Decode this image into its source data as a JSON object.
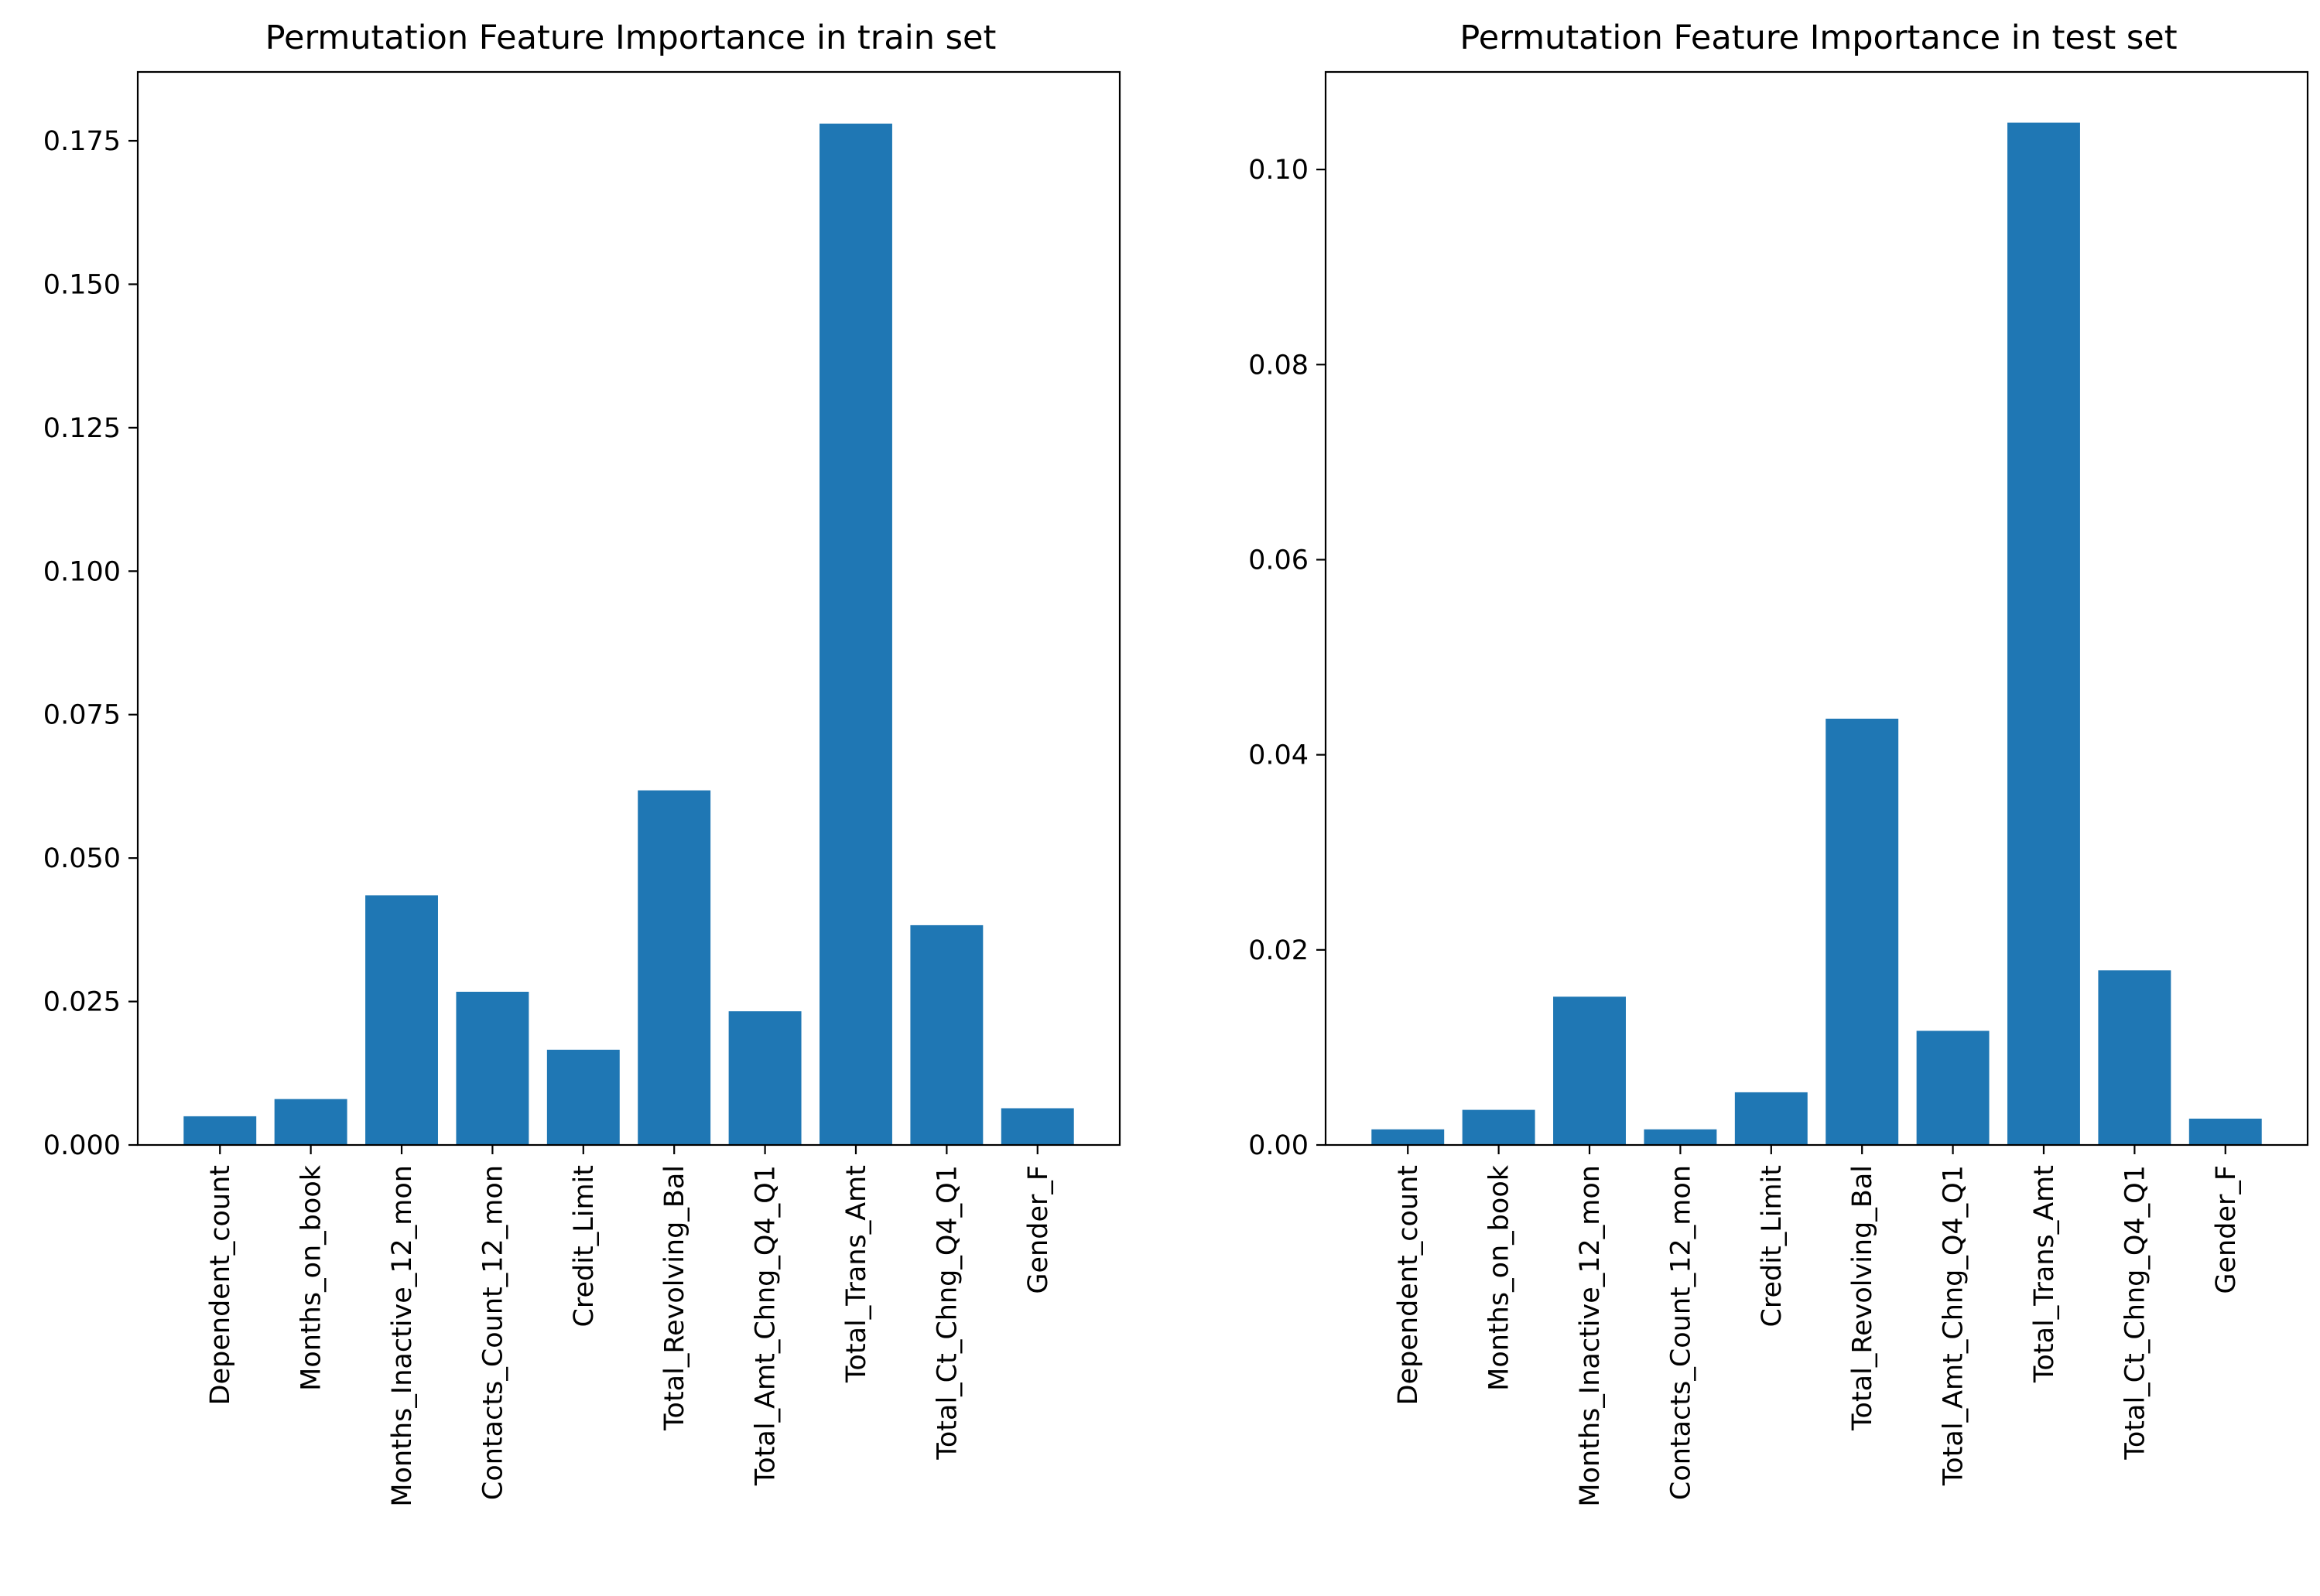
{
  "colors": {
    "bar": "#1f77b4",
    "axis": "#000000",
    "background": "#ffffff"
  },
  "chart_data": [
    {
      "type": "bar",
      "title": "Permutation Feature Importance in train set",
      "xlabel": "",
      "ylabel": "",
      "categories": [
        "Dependent_count",
        "Months_on_book",
        "Months_Inactive_12_mon",
        "Contacts_Count_12_mon",
        "Credit_Limit",
        "Total_Revolving_Bal",
        "Total_Amt_Chng_Q4_Q1",
        "Total_Trans_Amt",
        "Total_Ct_Chng_Q4_Q1",
        "Gender_F"
      ],
      "values": [
        0.005,
        0.008,
        0.0435,
        0.0267,
        0.0166,
        0.0618,
        0.0233,
        0.178,
        0.0383,
        0.0064
      ],
      "ylim": [
        0,
        0.187
      ],
      "yticks": [
        "0.000",
        "0.025",
        "0.050",
        "0.075",
        "0.100",
        "0.125",
        "0.150",
        "0.175"
      ],
      "ytick_values": [
        0,
        0.025,
        0.05,
        0.075,
        0.1,
        0.125,
        0.15,
        0.175
      ],
      "grid": false,
      "legend": "none"
    },
    {
      "type": "bar",
      "title": "Permutation Feature Importance in test set",
      "xlabel": "",
      "ylabel": "",
      "categories": [
        "Dependent_count",
        "Months_on_book",
        "Months_Inactive_12_mon",
        "Contacts_Count_12_mon",
        "Credit_Limit",
        "Total_Revolving_Bal",
        "Total_Amt_Chng_Q4_Q1",
        "Total_Trans_Amt",
        "Total_Ct_Chng_Q4_Q1",
        "Gender_F"
      ],
      "values": [
        0.0016,
        0.0036,
        0.0152,
        0.0016,
        0.0054,
        0.0437,
        0.0117,
        0.1048,
        0.0179,
        0.0027
      ],
      "ylim": [
        0,
        0.11
      ],
      "yticks": [
        "0.00",
        "0.02",
        "0.04",
        "0.06",
        "0.08",
        "0.10"
      ],
      "ytick_values": [
        0,
        0.02,
        0.04,
        0.06,
        0.08,
        0.1
      ],
      "grid": false,
      "legend": "none"
    }
  ]
}
